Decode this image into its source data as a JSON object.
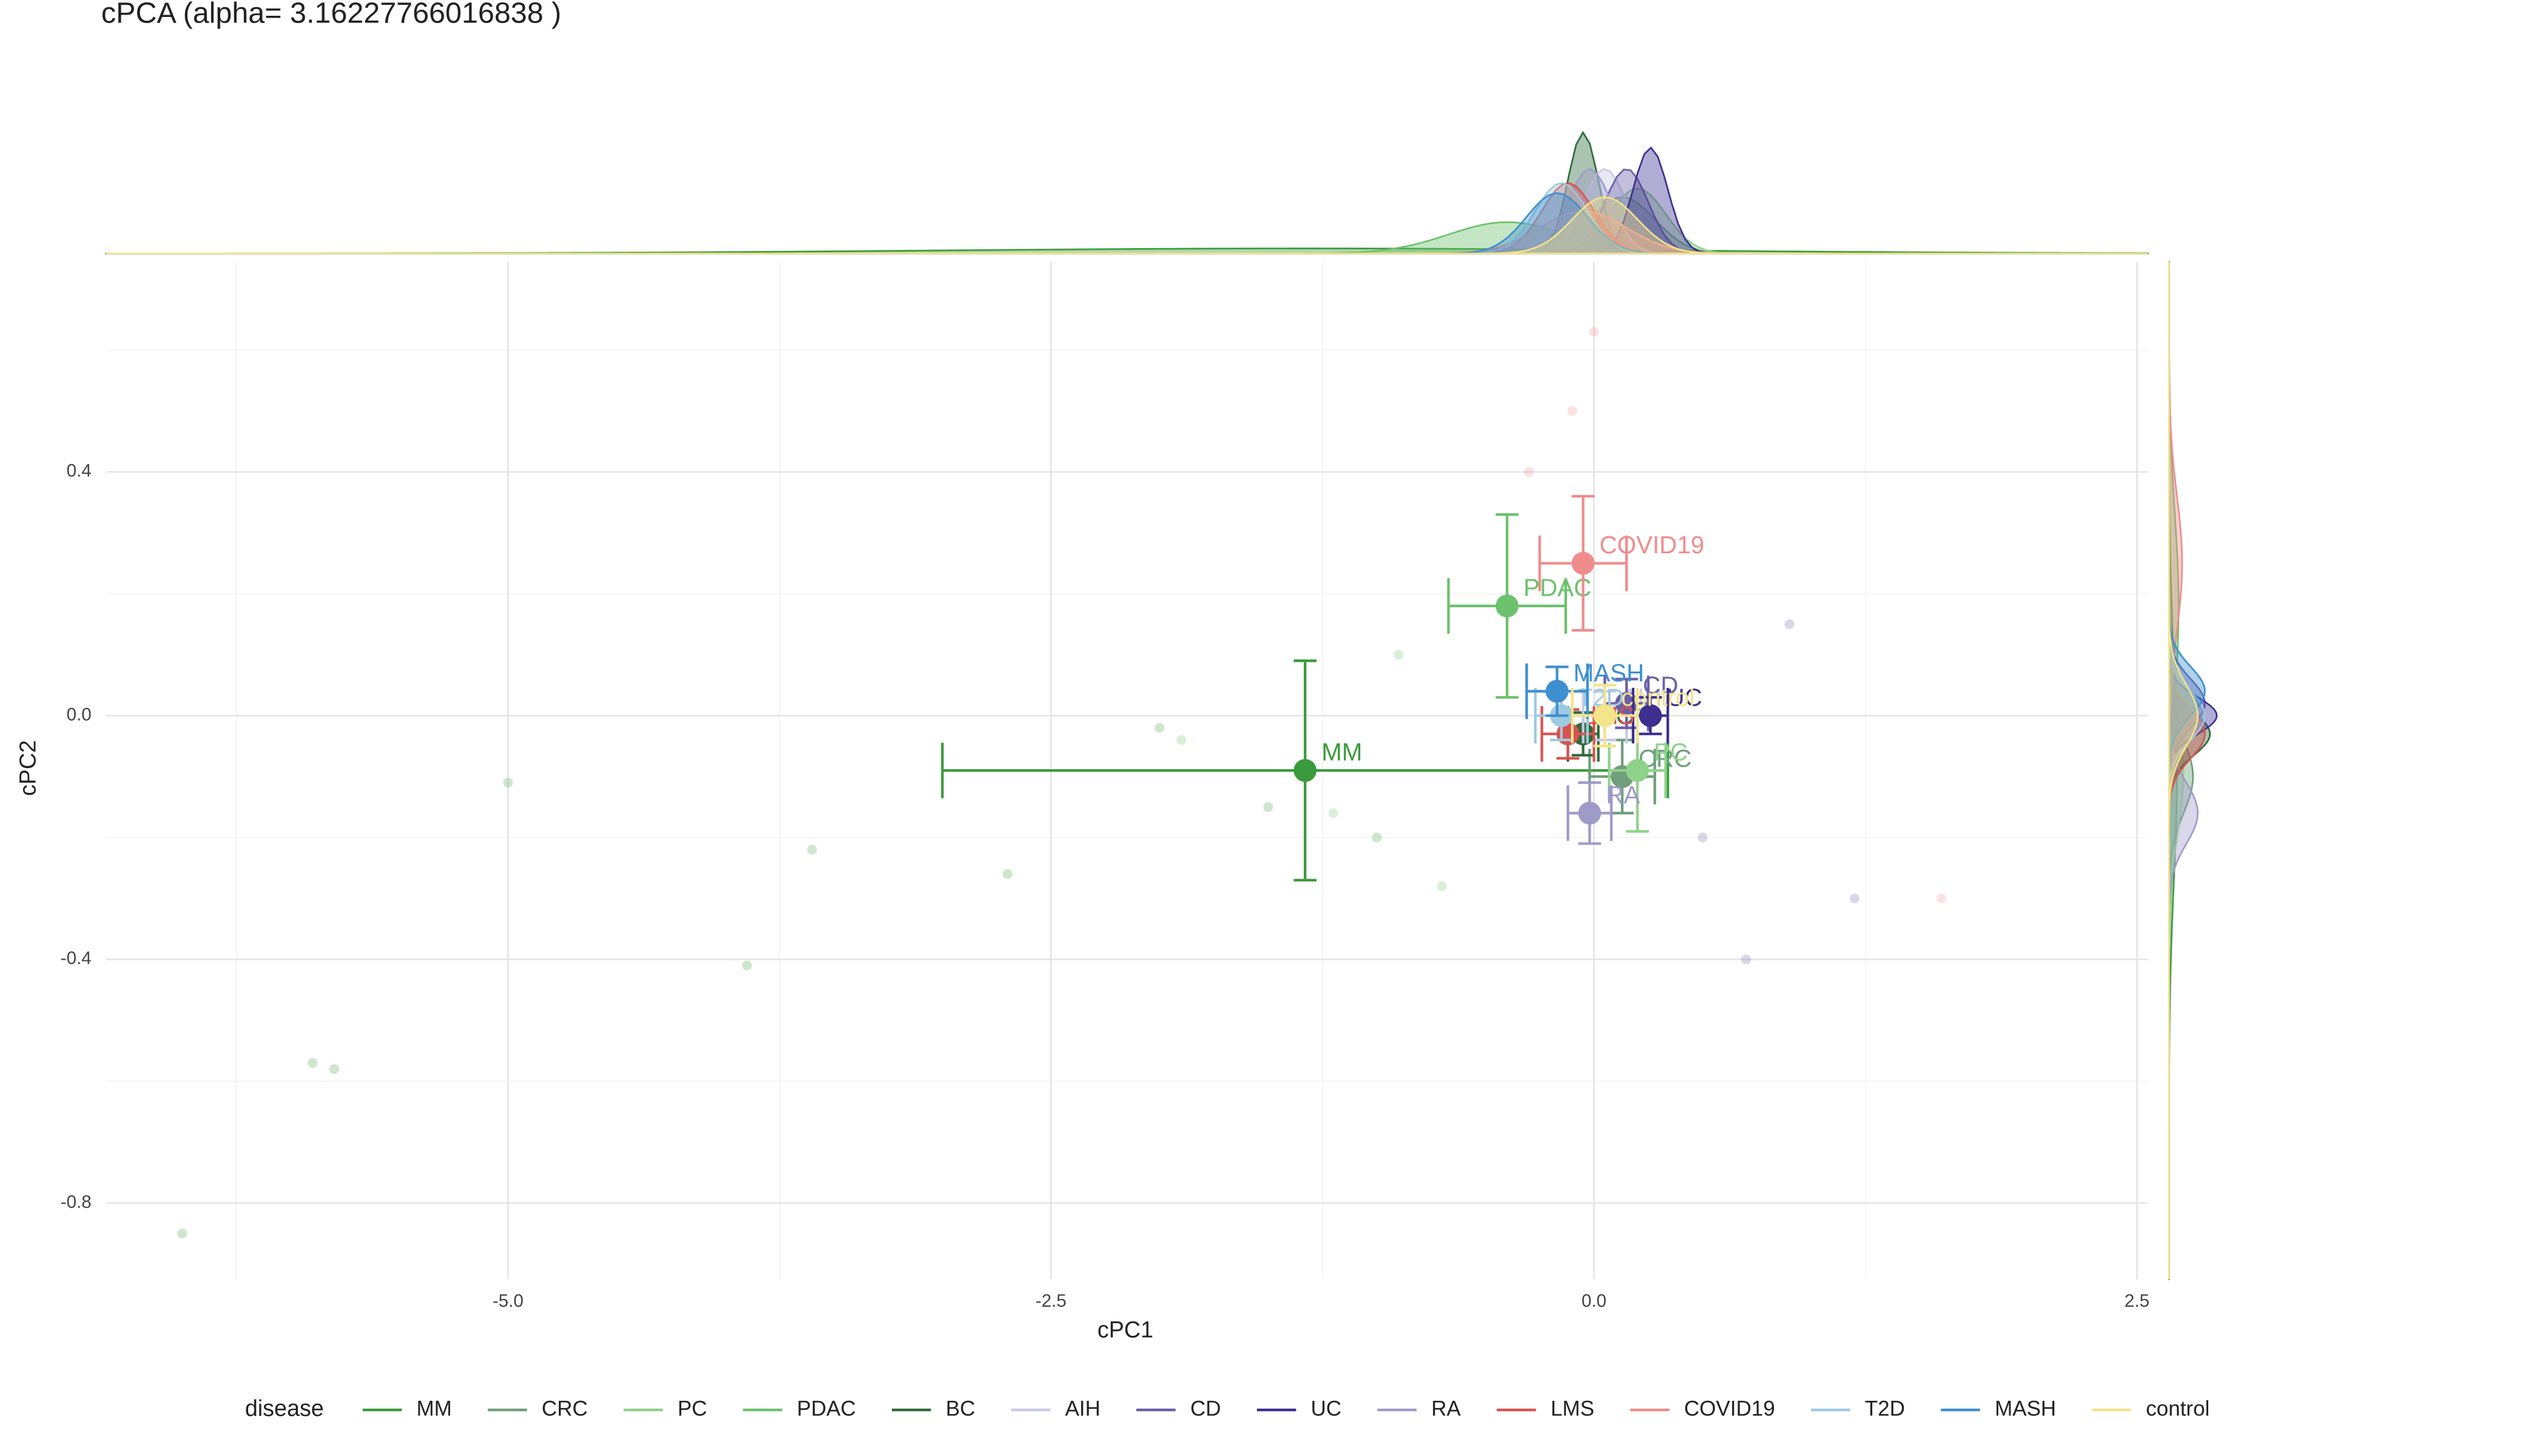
{
  "chart_data": {
    "type": "scatter",
    "title": "cPCA (alpha= 3.16227766016838 )",
    "x_label": "cPC1",
    "y_label": "cPC2",
    "legend_title": "disease",
    "xlim": [
      -6.85,
      2.55
    ],
    "ylim": [
      -0.925,
      0.745
    ],
    "xticks": [
      {
        "value": -5,
        "label": "-5.0"
      },
      {
        "value": -2.5,
        "label": "-2.5"
      },
      {
        "value": 0,
        "label": "0.0"
      },
      {
        "value": 2.5,
        "label": "2.5"
      }
    ],
    "yticks": [
      0.4,
      {
        "value": 0,
        "label": "0.0"
      },
      -0.4,
      -0.8
    ],
    "x_minor_ticks": [
      -6.25,
      -3.75,
      -1.25,
      1.25
    ],
    "y_minor_ticks": [
      0.6,
      0.2,
      -0.2,
      -0.6
    ],
    "grid": true,
    "legend": "bottom",
    "series": [
      {
        "name": "MM",
        "color": "#3b9a3b",
        "x": -1.33,
        "y": -0.09,
        "xerr": 1.67,
        "yerr": 0.18,
        "points_x": [
          -6.5,
          -5.9,
          -5.8,
          -5.0,
          -3.9,
          -3.6,
          -2.7,
          -2.0,
          -1.5,
          -1.0
        ],
        "points_y": [
          -0.85,
          -0.57,
          -0.58,
          -0.11,
          -0.41,
          -0.22,
          -0.26,
          -0.02,
          -0.15,
          -0.2
        ]
      },
      {
        "name": "CRC",
        "color": "#6f9f7d",
        "x": 0.13,
        "y": -0.1,
        "xerr": 0.15,
        "yerr": 0.06
      },
      {
        "name": "PC",
        "color": "#8fd28a",
        "x": 0.2,
        "y": -0.09,
        "xerr": 0.13,
        "yerr": 0.1
      },
      {
        "name": "PDAC",
        "color": "#6cc16c",
        "x": -0.4,
        "y": 0.18,
        "xerr": 0.27,
        "yerr": 0.15,
        "points_x": [
          -1.9,
          -1.2,
          -0.9,
          -0.7
        ],
        "points_y": [
          -0.04,
          -0.16,
          0.1,
          -0.28
        ]
      },
      {
        "name": "BC",
        "color": "#2e6b3c",
        "x": -0.05,
        "y": -0.03,
        "xerr": 0.07,
        "yerr": 0.035
      },
      {
        "name": "AIH",
        "color": "#c9c9e5",
        "x": 0.05,
        "y": 0.0,
        "xerr": 0.1,
        "yerr": 0.04
      },
      {
        "name": "CD",
        "color": "#6a5fa8",
        "x": 0.15,
        "y": 0.02,
        "xerr": 0.1,
        "yerr": 0.04,
        "points_x": [
          0.5,
          0.7,
          0.9,
          1.2
        ],
        "points_y": [
          -0.2,
          -0.4,
          0.15,
          -0.3
        ]
      },
      {
        "name": "UC",
        "color": "#3c2f90",
        "x": 0.26,
        "y": 0.0,
        "xerr": 0.08,
        "yerr": 0.03
      },
      {
        "name": "RA",
        "color": "#9f9bc9",
        "x": -0.02,
        "y": -0.16,
        "xerr": 0.1,
        "yerr": 0.05
      },
      {
        "name": "LMS",
        "color": "#d8524f",
        "x": -0.12,
        "y": -0.03,
        "xerr": 0.12,
        "yerr": 0.04
      },
      {
        "name": "COVID19",
        "color": "#ef8c8c",
        "x": -0.05,
        "y": 0.25,
        "xerr": 0.2,
        "yerr": 0.11,
        "points_x": [
          -0.1,
          0.0,
          -0.3,
          1.6
        ],
        "points_y": [
          0.5,
          0.63,
          0.4,
          -0.3
        ]
      },
      {
        "name": "T2D",
        "color": "#9ecae1",
        "x": -0.15,
        "y": 0.0,
        "xerr": 0.12,
        "yerr": 0.04
      },
      {
        "name": "MASH",
        "color": "#3d8fcf",
        "x": -0.17,
        "y": 0.04,
        "xerr": 0.14,
        "yerr": 0.04
      },
      {
        "name": "control",
        "color": "#f4e48a",
        "x": 0.05,
        "y": 0.0,
        "xerr": 0.15,
        "yerr": 0.05
      }
    ]
  }
}
